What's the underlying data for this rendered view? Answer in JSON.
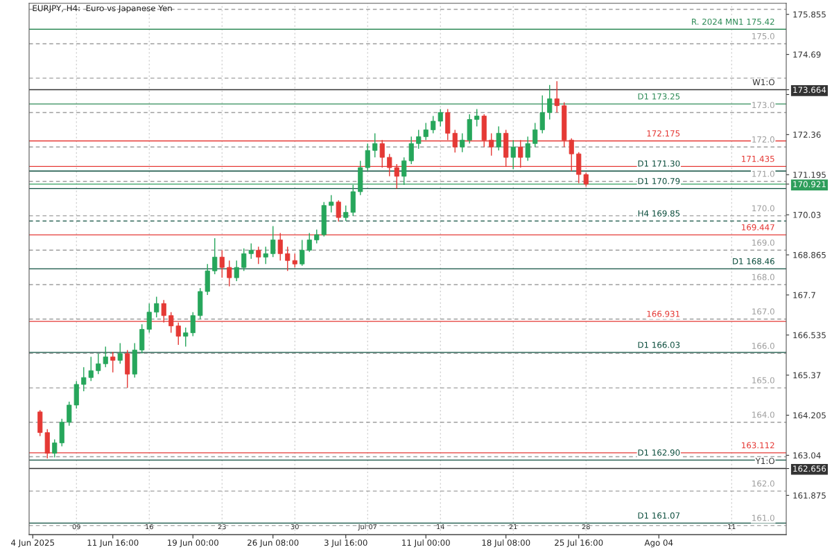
{
  "chart_data": {
    "type": "candlestick",
    "title": "EURJPY, H4:  Euro vs Japanese Yen",
    "categories": [
      "4 Jun 2025",
      null,
      null,
      null,
      null,
      null,
      "09",
      null,
      null,
      null,
      null,
      "11 Jun 16:00",
      null,
      null,
      null,
      null,
      "16",
      null,
      null,
      null,
      null,
      null,
      "19 Jun 00:00",
      null,
      null,
      null,
      "23",
      null,
      null,
      null,
      null,
      null,
      null,
      "26 Jun 08:00",
      null,
      null,
      "30",
      null,
      null,
      null,
      null,
      null,
      null,
      "3 Jul 16:00",
      null,
      null,
      "Jul 07",
      null,
      null,
      null,
      null,
      null,
      null,
      null,
      "11 Jul 00:00",
      null,
      "14",
      null,
      null,
      null,
      null,
      null,
      null,
      null,
      null,
      "18 Jul 08:00",
      "21",
      null,
      null,
      null,
      null,
      null,
      null,
      null,
      null,
      "25 Jul 16:00",
      "28",
      null,
      null,
      null,
      null,
      null,
      null,
      null,
      null,
      null,
      "Ago 04",
      null,
      null,
      null,
      null,
      null,
      null,
      null,
      null,
      null,
      "11",
      null,
      null,
      null,
      null,
      null,
      null,
      null
    ],
    "ohlc": [
      null,
      [
        164.3,
        164.35,
        163.6,
        163.7
      ],
      [
        163.7,
        163.8,
        162.95,
        163.1
      ],
      [
        163.1,
        163.5,
        162.98,
        163.4
      ],
      [
        163.4,
        164.1,
        163.3,
        164.0
      ],
      [
        164.0,
        164.6,
        163.9,
        164.5
      ],
      [
        164.5,
        165.2,
        164.4,
        165.1
      ],
      [
        165.1,
        165.6,
        164.9,
        165.3
      ],
      [
        165.3,
        165.9,
        165.2,
        165.5
      ],
      [
        165.5,
        166.0,
        165.4,
        165.7
      ],
      [
        165.7,
        166.2,
        165.6,
        165.9
      ],
      [
        165.9,
        166.05,
        165.45,
        165.8
      ],
      [
        165.8,
        166.3,
        165.7,
        166.0
      ],
      [
        166.0,
        166.1,
        165.0,
        165.4
      ],
      [
        165.4,
        166.3,
        165.3,
        166.1
      ],
      [
        166.1,
        166.85,
        166.0,
        166.7
      ],
      [
        166.7,
        167.45,
        166.6,
        167.2
      ],
      [
        167.2,
        167.65,
        167.05,
        167.45
      ],
      [
        167.45,
        167.55,
        166.9,
        167.1
      ],
      [
        167.1,
        167.2,
        166.6,
        166.8
      ],
      [
        166.8,
        166.9,
        166.25,
        166.5
      ],
      [
        166.5,
        166.75,
        166.2,
        166.6
      ],
      [
        166.6,
        167.2,
        166.5,
        167.1
      ],
      [
        167.1,
        167.9,
        167.0,
        167.8
      ],
      [
        167.8,
        168.6,
        167.7,
        168.4
      ],
      [
        168.4,
        169.35,
        168.3,
        168.8
      ],
      [
        168.8,
        169.0,
        168.2,
        168.5
      ],
      [
        168.5,
        168.7,
        167.95,
        168.2
      ],
      [
        168.2,
        168.7,
        168.1,
        168.5
      ],
      [
        168.5,
        169.05,
        168.4,
        168.9
      ],
      [
        168.9,
        169.2,
        168.75,
        169.0
      ],
      [
        169.0,
        169.1,
        168.6,
        168.8
      ],
      [
        168.8,
        169.1,
        168.6,
        168.9
      ],
      [
        168.9,
        169.7,
        168.8,
        169.3
      ],
      [
        169.3,
        169.5,
        168.7,
        168.9
      ],
      [
        168.9,
        169.1,
        168.4,
        168.7
      ],
      [
        168.7,
        168.9,
        168.5,
        168.6
      ],
      [
        168.6,
        169.3,
        168.55,
        169.0
      ],
      [
        169.0,
        169.5,
        168.95,
        169.3
      ],
      [
        169.3,
        169.6,
        169.2,
        169.45
      ],
      [
        169.45,
        170.4,
        169.4,
        170.3
      ],
      [
        170.3,
        170.6,
        170.1,
        170.4
      ],
      [
        170.4,
        170.45,
        169.83,
        169.95
      ],
      [
        169.95,
        170.3,
        169.85,
        170.1
      ],
      [
        170.1,
        170.9,
        170.0,
        170.7
      ],
      [
        170.7,
        171.6,
        170.6,
        171.4
      ],
      [
        171.4,
        172.1,
        171.3,
        171.9
      ],
      [
        171.9,
        172.4,
        171.7,
        172.1
      ],
      [
        172.1,
        172.2,
        171.4,
        171.7
      ],
      [
        171.7,
        171.8,
        171.15,
        171.4
      ],
      [
        171.4,
        171.5,
        170.79,
        171.15
      ],
      [
        171.15,
        171.7,
        170.9,
        171.6
      ],
      [
        171.6,
        172.3,
        171.5,
        172.1
      ],
      [
        172.1,
        172.5,
        171.95,
        172.3
      ],
      [
        172.3,
        172.7,
        172.2,
        172.5
      ],
      [
        172.5,
        172.9,
        172.4,
        172.75
      ],
      [
        172.75,
        173.1,
        172.6,
        173.0
      ],
      [
        173.0,
        173.1,
        172.2,
        172.4
      ],
      [
        172.4,
        172.5,
        171.84,
        172.0
      ],
      [
        172.0,
        172.4,
        171.85,
        172.2
      ],
      [
        172.2,
        172.95,
        172.1,
        172.8
      ],
      [
        172.8,
        173.1,
        172.6,
        172.9
      ],
      [
        172.9,
        172.95,
        172.0,
        172.2
      ],
      [
        172.2,
        172.4,
        171.75,
        172.0
      ],
      [
        172.0,
        172.6,
        171.9,
        172.4
      ],
      [
        172.4,
        172.5,
        171.43,
        171.7
      ],
      [
        171.7,
        172.2,
        171.35,
        172.0
      ],
      [
        172.0,
        172.2,
        171.4,
        171.7
      ],
      [
        171.7,
        172.3,
        171.6,
        172.1
      ],
      [
        172.1,
        172.7,
        172.0,
        172.5
      ],
      [
        172.5,
        173.5,
        172.4,
        173.0
      ],
      [
        173.0,
        173.8,
        172.8,
        173.4
      ],
      [
        173.4,
        173.91,
        173.0,
        173.2
      ],
      [
        173.2,
        173.3,
        172.0,
        172.2
      ],
      [
        172.2,
        172.25,
        171.3,
        171.8
      ],
      [
        171.8,
        171.85,
        170.95,
        171.2
      ],
      [
        171.2,
        171.25,
        170.85,
        170.92
      ],
      null,
      null,
      null,
      null,
      null,
      null,
      null,
      null,
      null,
      null,
      null,
      null,
      null,
      null,
      null,
      null,
      null,
      null,
      null,
      null,
      null,
      null,
      null,
      null,
      null,
      null,
      null
    ],
    "colors": [
      null,
      "#e53935",
      "#e53935",
      "#26a65b",
      "#26a65b",
      "#26a65b",
      "#26a65b",
      "#26a65b",
      "#26a65b",
      "#26a65b",
      "#26a65b",
      "#e53935",
      "#26a65b",
      "#e53935",
      "#26a65b",
      "#26a65b",
      "#26a65b",
      "#26a65b",
      "#e53935",
      "#e53935",
      "#e53935",
      "#26a65b",
      "#26a65b",
      "#26a65b",
      "#26a65b",
      "#26a65b",
      "#e53935",
      "#e53935",
      "#26a65b",
      "#26a65b",
      "#26a65b",
      "#e53935",
      "#26a65b",
      "#26a65b",
      "#e53935",
      "#e53935",
      "#e53935",
      "#26a65b",
      "#26a65b",
      "#26a65b",
      "#26a65b",
      "#26a65b",
      "#e53935",
      "#26a65b",
      "#26a65b",
      "#26a65b",
      "#26a65b",
      "#26a65b",
      "#e53935",
      "#e53935",
      "#e53935",
      "#26a65b",
      "#26a65b",
      "#26a65b",
      "#26a65b",
      "#26a65b",
      "#26a65b",
      "#e53935",
      "#e53935",
      "#26a65b",
      "#26a65b",
      "#26a65b",
      "#e53935",
      "#e53935",
      "#26a65b",
      "#e53935",
      "#26a65b",
      "#e53935",
      "#26a65b",
      "#26a65b",
      "#26a65b",
      "#26a65b",
      "#e53935",
      "#e53935",
      "#e53935",
      "#e53935",
      "#e53935",
      null,
      null,
      null,
      null,
      null,
      null,
      null,
      null,
      null,
      null,
      null,
      null,
      null,
      null,
      null,
      null,
      null,
      null,
      null,
      null,
      null,
      null,
      null,
      null,
      null,
      null,
      null
    ],
    "ylim": [
      160.735,
      176.175
    ],
    "yticks": [
      175.855,
      174.69,
      {
        "value": 173.525,
        "label": null
      },
      {
        "value": 173.664,
        "label": "173.664"
      },
      172.36,
      171.195,
      {
        "value": 170.921,
        "label": "170.921"
      },
      170.03,
      168.865,
      167.7,
      166.535,
      165.37,
      164.205,
      163.04,
      {
        "value": 162.656,
        "label": "162.656"
      },
      161.875
    ],
    "grid": "x",
    "ref_lines": [
      {
        "axis": "y",
        "value": 176.0,
        "label": null,
        "color": "#9e9e9e",
        "line_style": "dashed"
      },
      {
        "axis": "y",
        "value": 175.0,
        "label": "175.0",
        "color": "#9e9e9e",
        "line_style": "dashed"
      },
      {
        "axis": "y",
        "value": 174.0,
        "label": null,
        "color": "#9e9e9e",
        "line_style": "dashed"
      },
      {
        "axis": "y",
        "value": 173.0,
        "label": "173.0",
        "color": "#9e9e9e",
        "line_style": "dashed"
      },
      {
        "axis": "y",
        "value": 172.0,
        "label": "172.0",
        "color": "#9e9e9e",
        "line_style": "dashed"
      },
      {
        "axis": "y",
        "value": 171.0,
        "label": "171.0",
        "color": "#9e9e9e",
        "line_style": "dashed"
      },
      {
        "axis": "y",
        "value": 170.0,
        "label": "170.0",
        "color": "#9e9e9e",
        "line_style": "dashed"
      },
      {
        "axis": "y",
        "value": 169.0,
        "label": "169.0",
        "color": "#9e9e9e",
        "line_style": "dashed"
      },
      {
        "axis": "y",
        "value": 168.0,
        "label": "168.0",
        "color": "#9e9e9e",
        "line_style": "dashed"
      },
      {
        "axis": "y",
        "value": 167.0,
        "label": "167.0",
        "color": "#9e9e9e",
        "line_style": "dashed"
      },
      {
        "axis": "y",
        "value": 166.0,
        "label": "166.0",
        "color": "#9e9e9e",
        "line_style": "dashed"
      },
      {
        "axis": "y",
        "value": 165.0,
        "label": "165.0",
        "color": "#9e9e9e",
        "line_style": "dashed"
      },
      {
        "axis": "y",
        "value": 164.0,
        "label": "164.0",
        "color": "#9e9e9e",
        "line_style": "dashed"
      },
      {
        "axis": "y",
        "value": 163.0,
        "label": null,
        "color": "#9e9e9e",
        "line_style": "dashed"
      },
      {
        "axis": "y",
        "value": 162.0,
        "label": "162.0",
        "color": "#9e9e9e",
        "line_style": "dashed"
      },
      {
        "axis": "y",
        "value": 161.0,
        "label": "161.0",
        "color": "#9e9e9e",
        "line_style": "dashed"
      },
      {
        "axis": "y",
        "value": 175.42,
        "label": "R. 2024 MN1 175.42",
        "color": "#2e8b57",
        "line_style": "solid"
      },
      {
        "axis": "y",
        "value": 173.664,
        "label": "W1:O",
        "color": "#333333",
        "line_style": "solid"
      },
      {
        "axis": "y",
        "value": 173.25,
        "label": "D1 173.25",
        "color": "#2e8b57",
        "line_style": "solid"
      },
      {
        "axis": "y",
        "value": 172.175,
        "label": "172.175",
        "color": "#e53935",
        "line_style": "solid"
      },
      {
        "axis": "y",
        "value": 171.435,
        "label": "171.435",
        "color": "#e53935",
        "line_style": "solid"
      },
      {
        "axis": "y",
        "value": 171.3,
        "label": "D1 171.30",
        "color": "#0b4d3c",
        "line_style": "solid"
      },
      {
        "axis": "y",
        "value": 170.921,
        "label": null,
        "color": "#2e9e5b",
        "line_style": "solid"
      },
      {
        "axis": "y",
        "value": 170.79,
        "label": "D1 170.79",
        "color": "#0b4d3c",
        "line_style": "solid"
      },
      {
        "axis": "y",
        "value": 169.85,
        "label": "H4 169.85",
        "color": "#0b4d3c",
        "line_style": "dashed"
      },
      {
        "axis": "y",
        "value": 169.447,
        "label": "169.447",
        "color": "#e53935",
        "line_style": "solid"
      },
      {
        "axis": "y",
        "value": 168.46,
        "label": "D1 168.46",
        "color": "#0b4d3c",
        "line_style": "solid"
      },
      {
        "axis": "y",
        "value": 166.931,
        "label": "166.931",
        "color": "#e53935",
        "line_style": "solid"
      },
      {
        "axis": "y",
        "value": 166.03,
        "label": "D1 166.03",
        "color": "#0b4d3c",
        "line_style": "solid"
      },
      {
        "axis": "y",
        "value": 163.112,
        "label": "163.112",
        "color": "#e53935",
        "line_style": "solid"
      },
      {
        "axis": "y",
        "value": 162.9,
        "label": "D1 162.90",
        "color": "#0b4d3c",
        "line_style": "solid"
      },
      {
        "axis": "y",
        "value": 162.656,
        "label": "Y1:O",
        "color": "#333333",
        "line_style": "solid"
      },
      {
        "axis": "y",
        "value": 161.07,
        "label": "D1 161.07",
        "color": "#0b4d3c",
        "line_style": "solid"
      }
    ]
  }
}
